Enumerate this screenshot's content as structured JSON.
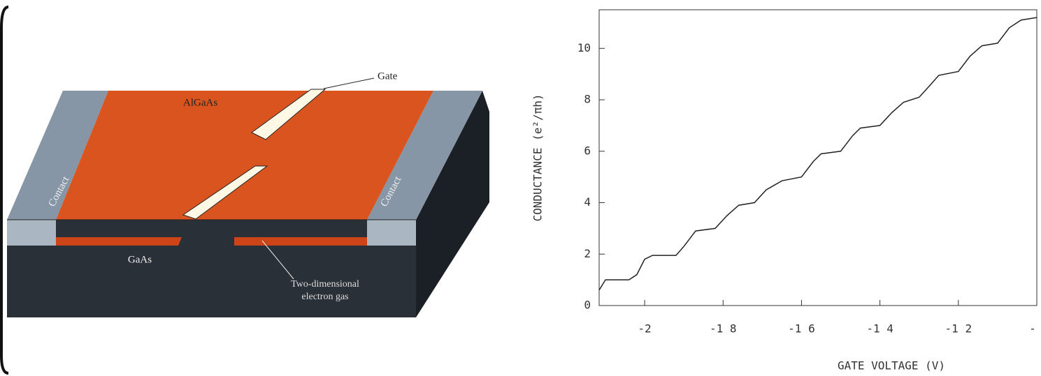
{
  "diagram": {
    "labels": {
      "gate": "Gate",
      "algaas": "AlGaAs",
      "contact_left": "Contact",
      "contact_right": "Contact",
      "gaas": "GaAs",
      "electron_gas": [
        "Two-dimensional",
        "electron gas"
      ]
    }
  },
  "chart_data": {
    "type": "line",
    "x_label": "GATE VOLTAGE (V)",
    "y_label": "CONDUCTANCE (e²/πh)",
    "color": "#222222",
    "x": [
      -2.116,
      -2.1,
      -2.04,
      -2.02,
      -2.0,
      -1.98,
      -1.92,
      -1.9,
      -1.87,
      -1.82,
      -1.79,
      -1.76,
      -1.72,
      -1.69,
      -1.65,
      -1.6,
      -1.57,
      -1.55,
      -1.5,
      -1.47,
      -1.45,
      -1.4,
      -1.37,
      -1.34,
      -1.3,
      -1.27,
      -1.25,
      -1.2,
      -1.17,
      -1.14,
      -1.1,
      -1.07,
      -1.04,
      -1.0
    ],
    "values": [
      0.6,
      1.0,
      1.0,
      1.2,
      1.8,
      1.95,
      1.95,
      2.3,
      2.9,
      3.0,
      3.5,
      3.9,
      4.0,
      4.5,
      4.85,
      5.0,
      5.6,
      5.9,
      6.0,
      6.6,
      6.9,
      7.0,
      7.5,
      7.9,
      8.1,
      8.6,
      8.95,
      9.1,
      9.7,
      10.1,
      10.2,
      10.8,
      11.1,
      11.2
    ],
    "xlim": [
      -2.116,
      -1.0
    ],
    "ylim": [
      0,
      11.5
    ],
    "xticks": [
      -2,
      {
        "value": -1.8,
        "label": "-1 8"
      },
      {
        "value": -1.6,
        "label": "-1 6"
      },
      {
        "value": -1.4,
        "label": "-1 4"
      },
      {
        "value": -1.2,
        "label": "-1 2"
      },
      {
        "value": -1.0,
        "label": "-"
      }
    ],
    "yticks": [
      0,
      2,
      4,
      6,
      8,
      10
    ],
    "grid": false
  }
}
